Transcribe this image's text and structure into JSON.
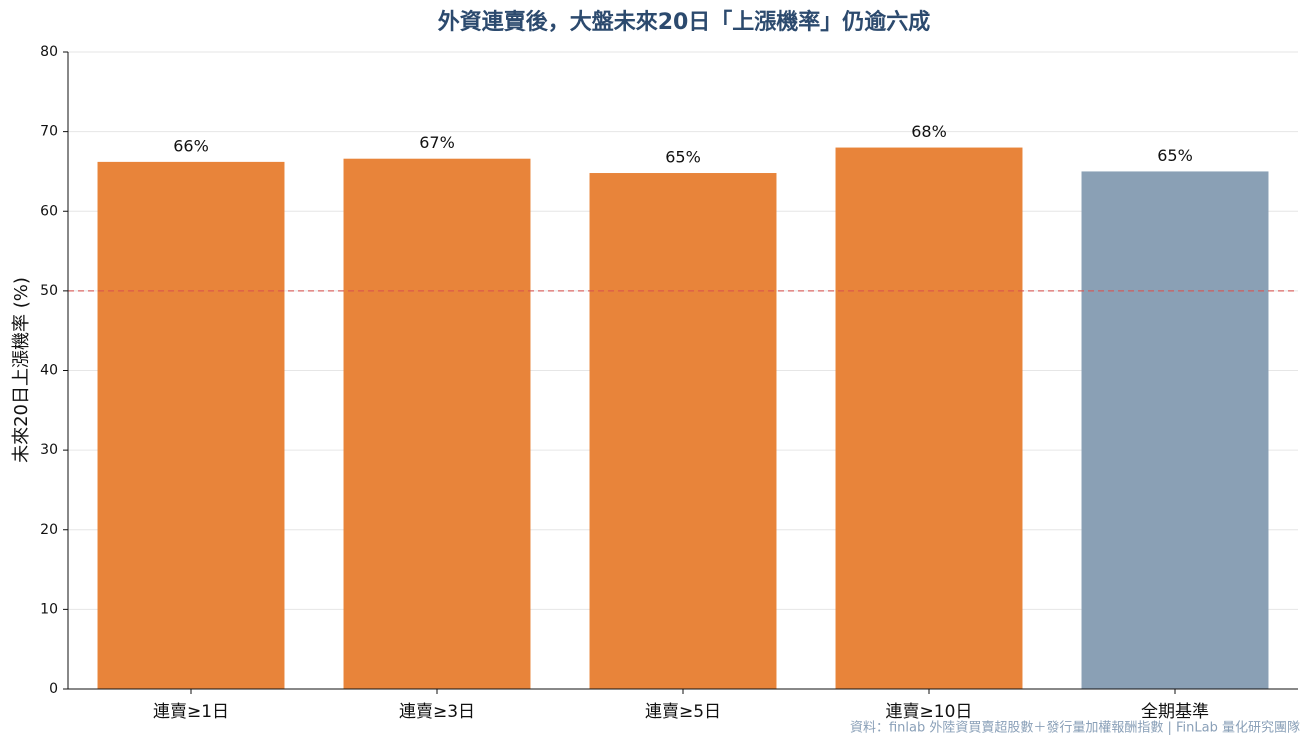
{
  "chart_data": {
    "type": "bar",
    "title": "外資連賣後，大盤未來20日「上漲機率」仍逾六成",
    "y_label": "未來20日上漲機率 (%)",
    "source": "資料：finlab 外陸資買賣超股數＋發行量加權報酬指數 | FinLab 量化研究團隊",
    "categories": [
      "連賣≥1日",
      "連賣≥3日",
      "連賣≥5日",
      "連賣≥10日",
      "全期基準"
    ],
    "values": [
      66.2,
      66.6,
      64.8,
      68.0,
      65.0
    ],
    "value_labels": [
      "66%",
      "67%",
      "65%",
      "68%",
      "65%"
    ],
    "colors": [
      "#e8843a",
      "#e8843a",
      "#e8843a",
      "#e8843a",
      "#8aa0b5"
    ],
    "ylim": [
      0,
      80
    ],
    "yticks": [
      0,
      10,
      20,
      30,
      40,
      50,
      60,
      70,
      80
    ],
    "grid": true,
    "reference_line": {
      "value": 50,
      "color": "#d9534f",
      "style": "dashed"
    }
  }
}
